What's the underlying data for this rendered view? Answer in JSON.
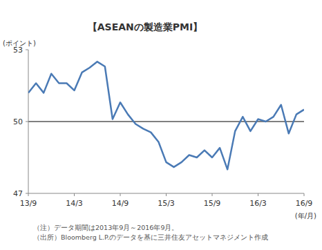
{
  "chart_data": {
    "type": "line",
    "title": "【ASEANの製造業PMI】",
    "y_label": "(ポイント)",
    "x_label": "(年/月)",
    "notes": [
      "（注）データ期間は2013年9月～2016年9月。",
      "（出所）Bloomberg L.P.のデータを基に三井住友アセットマネジメント作成"
    ],
    "categories": [
      "13/9",
      null,
      null,
      null,
      null,
      null,
      "14/3",
      null,
      null,
      null,
      null,
      null,
      "14/9",
      null,
      null,
      null,
      null,
      null,
      "15/3",
      null,
      null,
      null,
      null,
      null,
      "15/9",
      null,
      null,
      null,
      null,
      null,
      "16/3",
      null,
      null,
      null,
      null,
      null,
      "16/9"
    ],
    "values": [
      51.2,
      51.6,
      51.2,
      52.0,
      51.6,
      51.6,
      51.3,
      52.05,
      52.25,
      52.5,
      52.3,
      50.1,
      50.8,
      50.3,
      49.9,
      49.7,
      49.55,
      49.15,
      48.3,
      48.1,
      48.3,
      48.6,
      48.5,
      48.8,
      48.5,
      48.9,
      48.0,
      49.6,
      50.2,
      49.6,
      50.1,
      50.0,
      50.2,
      50.7,
      49.5,
      50.3,
      50.5
    ],
    "color": "#4a7ab5",
    "ylim": [
      47,
      53
    ],
    "yticks": [
      47,
      50,
      53
    ],
    "grid": true
  }
}
